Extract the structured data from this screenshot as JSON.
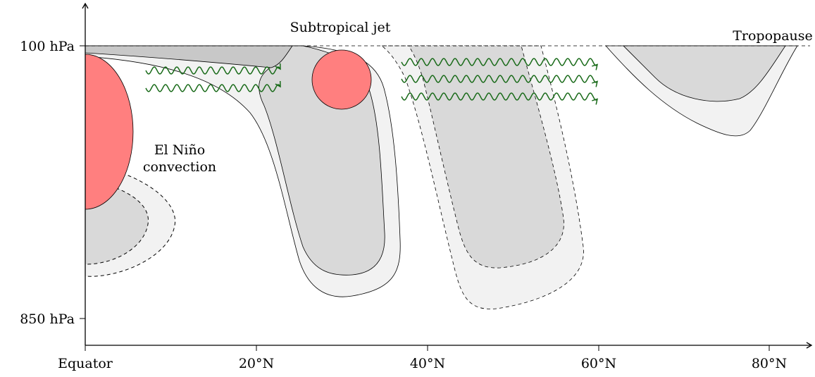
{
  "y_axis": {
    "labels": [
      "100 hPa",
      "850 hPa"
    ]
  },
  "x_axis": {
    "labels": [
      "Equator",
      "20°N",
      "40°N",
      "60°N",
      "80°N"
    ]
  },
  "annotations": {
    "subtropical_jet": "Subtropical jet",
    "tropopause": "Tropopause",
    "el_nino": [
      "El Niño",
      "convection"
    ]
  }
}
